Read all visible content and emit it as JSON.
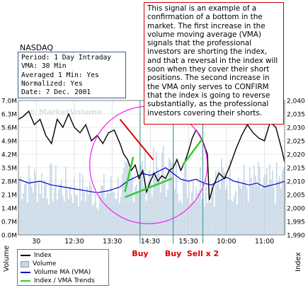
{
  "callout": {
    "text": "This signal is an example of a confirmation of a bottom in the market. The first increase in the volume moving average (VMA) signals that the professional investors are shorting the index, and that a reversal in the index will soon when they cover their short positions. The second increase in the VMA only serves to CONFIRM that the index is going to reverse substantially, as the professional investors covering their shorts."
  },
  "ticker": "NASDAQ",
  "info": {
    "period": "Period: 1 Day Intraday",
    "vma": "VMA: 30 Min",
    "averaged": "Averaged 1 Min: Yes",
    "normalized": "Normalized: Yes",
    "date": "Date: 7 Dec. 2001"
  },
  "legend": {
    "index": "Index",
    "volume": "Volume",
    "vma": "Volume MA (VMA)",
    "trends": "Index / VMA Trends"
  },
  "colors": {
    "index": "#000000",
    "volume": "#c6d7e6",
    "vma": "#0000cc",
    "trend": "#33cc33",
    "resistance": "#dd0000",
    "circle": "#ee33ee",
    "marker": "#2a8c8c",
    "grid": "#d3d3d3",
    "signal_text": "#dd0000"
  },
  "chart_data": {
    "type": "line",
    "watermark": "© MarketVolume",
    "left_axis": {
      "label": "Volume",
      "ticks": [
        "0.0M",
        "0.7M",
        "1.4M",
        "2.1M",
        "2.8M",
        "3.5M",
        "4.2M",
        "4.9M",
        "5.6M",
        "6.3M",
        "7.0M"
      ],
      "range": [
        0,
        7.0
      ]
    },
    "right_axis": {
      "label": "Index",
      "ticks": [
        "1,990",
        "1,995",
        "2,000",
        "2,005",
        "2,010",
        "2,015",
        "2,020",
        "2,025",
        "2,030",
        "2,035",
        "2,040"
      ],
      "range": [
        1990,
        2040
      ]
    },
    "x_ticks": [
      {
        "label": "30",
        "hour": 11.5
      },
      {
        "label": "12:30",
        "hour": 12.5
      },
      {
        "label": "13:30",
        "hour": 13.5
      },
      {
        "label": "14:30",
        "hour": 14.5
      },
      {
        "label": "15:30",
        "hour": 15.5
      },
      {
        "label": "10:00",
        "hour": 16.5
      },
      {
        "label": "11:00",
        "hour": 17.5
      }
    ],
    "x_range": [
      11.03,
      18.03
    ],
    "index_series": {
      "name": "Index",
      "x": [
        11.03,
        11.15,
        11.3,
        11.45,
        11.6,
        11.75,
        11.9,
        12.05,
        12.2,
        12.35,
        12.5,
        12.65,
        12.8,
        12.95,
        13.1,
        13.25,
        13.4,
        13.55,
        13.7,
        13.8,
        13.9,
        14.0,
        14.1,
        14.2,
        14.3,
        14.4,
        14.5,
        14.6,
        14.7,
        14.8,
        14.9,
        15.0,
        15.1,
        15.2,
        15.3,
        15.4,
        15.5,
        15.6,
        15.7,
        15.8,
        15.9,
        16.0,
        16.05,
        16.15,
        16.3,
        16.45,
        16.6,
        16.75,
        16.9,
        17.05,
        17.2,
        17.35,
        17.5,
        17.65,
        17.8,
        17.95,
        18.03
      ],
      "y": [
        2033,
        2034,
        2036,
        2031,
        2033,
        2027,
        2024,
        2033,
        2030,
        2035,
        2030,
        2028,
        2031,
        2025,
        2027,
        2024,
        2028,
        2029,
        2024,
        2020,
        2018,
        2014,
        2016,
        2011,
        2014,
        2006,
        2010,
        2013,
        2010,
        2012,
        2011,
        2014,
        2015,
        2018,
        2014,
        2017,
        2021,
        2026,
        2029,
        2027,
        2024,
        2020,
        2003,
        2008,
        2013,
        2011,
        2016,
        2022,
        2027,
        2031,
        2028,
        2026,
        2025,
        2032,
        2030,
        2022,
        2017
      ]
    },
    "vma_series": {
      "name": "Volume MA (VMA)",
      "x": [
        11.03,
        11.3,
        11.6,
        11.9,
        12.2,
        12.5,
        12.8,
        13.1,
        13.4,
        13.7,
        13.9,
        14.1,
        14.3,
        14.5,
        14.7,
        14.9,
        15.1,
        15.3,
        15.5,
        15.7,
        15.9,
        16.1,
        16.3,
        16.5,
        16.7,
        16.9,
        17.1,
        17.3,
        17.5,
        17.7,
        17.9,
        18.03
      ],
      "y": [
        2.9,
        2.7,
        2.8,
        2.6,
        2.5,
        2.4,
        2.3,
        2.2,
        2.3,
        2.5,
        2.8,
        3.0,
        3.2,
        3.1,
        3.3,
        3.5,
        3.2,
        2.9,
        2.8,
        2.9,
        2.7,
        2.6,
        2.8,
        3.0,
        2.8,
        2.7,
        2.6,
        2.7,
        2.5,
        2.6,
        2.7,
        2.8
      ]
    },
    "annotations": [
      {
        "label": "Buy",
        "hour": 14.23
      },
      {
        "label": "Buy",
        "hour": 15.1
      },
      {
        "label": "Sell x 2",
        "hour": 15.88
      }
    ]
  }
}
